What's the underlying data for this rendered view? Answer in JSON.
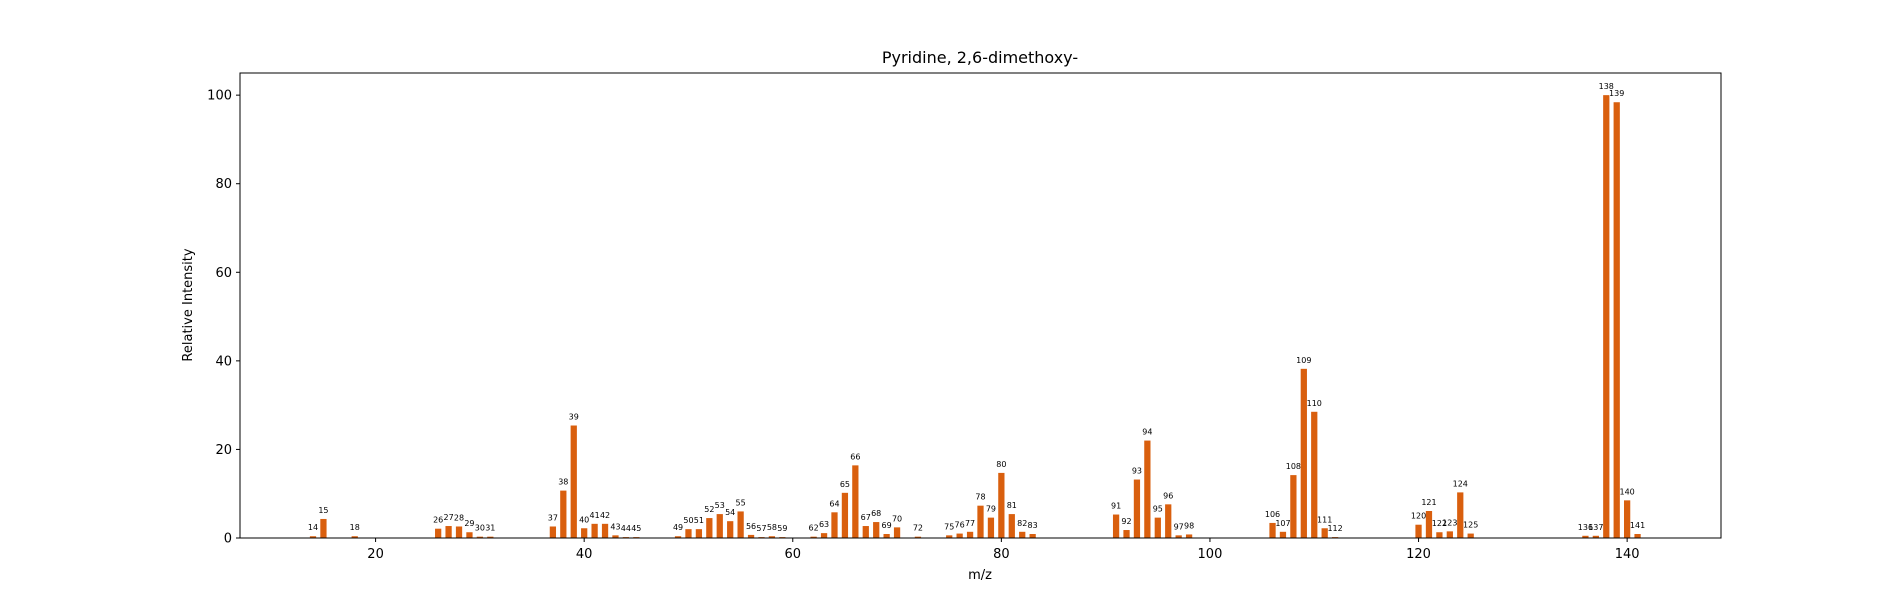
{
  "chart_data": {
    "type": "bar",
    "title": "Pyridine, 2,6-dimethoxy-",
    "xlabel": "m/z",
    "ylabel": "Relative Intensity",
    "xlim": [
      7,
      149
    ],
    "ylim": [
      0,
      105
    ],
    "xticks": [
      20,
      40,
      60,
      80,
      100,
      120,
      140
    ],
    "yticks": [
      0,
      20,
      40,
      60,
      80,
      100
    ],
    "grid": false,
    "bar_color": "#d95f0e",
    "points": [
      {
        "mz": 14,
        "intensity": 0.4
      },
      {
        "mz": 15,
        "intensity": 4.3
      },
      {
        "mz": 18,
        "intensity": 0.4
      },
      {
        "mz": 26,
        "intensity": 2.1
      },
      {
        "mz": 27,
        "intensity": 2.7
      },
      {
        "mz": 28,
        "intensity": 2.6
      },
      {
        "mz": 29,
        "intensity": 1.3
      },
      {
        "mz": 30,
        "intensity": 0.3
      },
      {
        "mz": 31,
        "intensity": 0.3
      },
      {
        "mz": 37,
        "intensity": 2.6
      },
      {
        "mz": 38,
        "intensity": 10.7
      },
      {
        "mz": 39,
        "intensity": 25.4
      },
      {
        "mz": 40,
        "intensity": 2.2
      },
      {
        "mz": 41,
        "intensity": 3.2
      },
      {
        "mz": 42,
        "intensity": 3.2
      },
      {
        "mz": 43,
        "intensity": 0.6
      },
      {
        "mz": 44,
        "intensity": 0.2
      },
      {
        "mz": 45,
        "intensity": 0.2
      },
      {
        "mz": 49,
        "intensity": 0.4
      },
      {
        "mz": 50,
        "intensity": 2.0
      },
      {
        "mz": 51,
        "intensity": 2.0
      },
      {
        "mz": 52,
        "intensity": 4.5
      },
      {
        "mz": 53,
        "intensity": 5.4
      },
      {
        "mz": 54,
        "intensity": 3.8
      },
      {
        "mz": 55,
        "intensity": 6.0
      },
      {
        "mz": 56,
        "intensity": 0.7
      },
      {
        "mz": 57,
        "intensity": 0.2
      },
      {
        "mz": 58,
        "intensity": 0.4
      },
      {
        "mz": 59,
        "intensity": 0.2
      },
      {
        "mz": 62,
        "intensity": 0.3
      },
      {
        "mz": 63,
        "intensity": 1.1
      },
      {
        "mz": 64,
        "intensity": 5.8
      },
      {
        "mz": 65,
        "intensity": 10.2
      },
      {
        "mz": 66,
        "intensity": 16.4
      },
      {
        "mz": 67,
        "intensity": 2.7
      },
      {
        "mz": 68,
        "intensity": 3.6
      },
      {
        "mz": 69,
        "intensity": 0.9
      },
      {
        "mz": 70,
        "intensity": 2.4
      },
      {
        "mz": 72,
        "intensity": 0.3
      },
      {
        "mz": 75,
        "intensity": 0.6
      },
      {
        "mz": 76,
        "intensity": 1.0
      },
      {
        "mz": 77,
        "intensity": 1.4
      },
      {
        "mz": 78,
        "intensity": 7.3
      },
      {
        "mz": 79,
        "intensity": 4.6
      },
      {
        "mz": 80,
        "intensity": 14.7
      },
      {
        "mz": 81,
        "intensity": 5.4
      },
      {
        "mz": 82,
        "intensity": 1.4
      },
      {
        "mz": 83,
        "intensity": 0.9
      },
      {
        "mz": 91,
        "intensity": 5.3
      },
      {
        "mz": 92,
        "intensity": 1.8
      },
      {
        "mz": 93,
        "intensity": 13.2
      },
      {
        "mz": 94,
        "intensity": 22.0
      },
      {
        "mz": 95,
        "intensity": 4.6
      },
      {
        "mz": 96,
        "intensity": 7.6
      },
      {
        "mz": 97,
        "intensity": 0.6
      },
      {
        "mz": 98,
        "intensity": 0.8
      },
      {
        "mz": 106,
        "intensity": 3.4
      },
      {
        "mz": 107,
        "intensity": 1.4
      },
      {
        "mz": 108,
        "intensity": 14.2
      },
      {
        "mz": 109,
        "intensity": 38.2
      },
      {
        "mz": 110,
        "intensity": 28.5
      },
      {
        "mz": 111,
        "intensity": 2.2
      },
      {
        "mz": 112,
        "intensity": 0.2
      },
      {
        "mz": 120,
        "intensity": 3.0
      },
      {
        "mz": 121,
        "intensity": 6.1
      },
      {
        "mz": 122,
        "intensity": 1.3
      },
      {
        "mz": 123,
        "intensity": 1.5
      },
      {
        "mz": 124,
        "intensity": 10.3
      },
      {
        "mz": 125,
        "intensity": 1.0
      },
      {
        "mz": 136,
        "intensity": 0.5
      },
      {
        "mz": 137,
        "intensity": 0.5
      },
      {
        "mz": 138,
        "intensity": 100.0
      },
      {
        "mz": 139,
        "intensity": 98.4
      },
      {
        "mz": 140,
        "intensity": 8.5
      },
      {
        "mz": 141,
        "intensity": 0.9
      }
    ]
  }
}
